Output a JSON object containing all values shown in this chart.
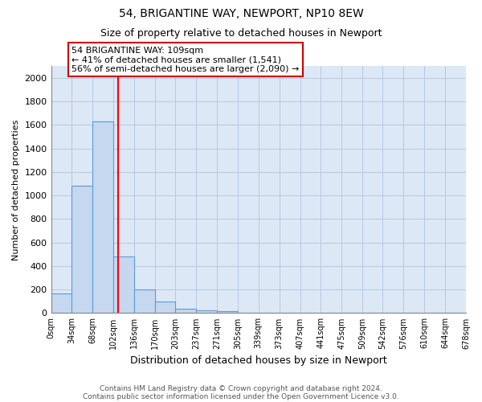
{
  "title1": "54, BRIGANTINE WAY, NEWPORT, NP10 8EW",
  "title2": "Size of property relative to detached houses in Newport",
  "xlabel": "Distribution of detached houses by size in Newport",
  "ylabel": "Number of detached properties",
  "bar_values": [
    170,
    1080,
    1630,
    480,
    200,
    100,
    40,
    25,
    15,
    0,
    0,
    0,
    0,
    0,
    0,
    0,
    0,
    0,
    0,
    0
  ],
  "bin_edges": [
    0,
    34,
    68,
    102,
    136,
    170,
    203,
    237,
    271,
    305,
    339,
    373,
    407,
    441,
    475,
    509,
    542,
    576,
    610,
    644,
    678
  ],
  "xlabels": [
    "0sqm",
    "34sqm",
    "68sqm",
    "102sqm",
    "136sqm",
    "170sqm",
    "203sqm",
    "237sqm",
    "271sqm",
    "305sqm",
    "339sqm",
    "373sqm",
    "407sqm",
    "441sqm",
    "475sqm",
    "509sqm",
    "542sqm",
    "576sqm",
    "610sqm",
    "644sqm",
    "678sqm"
  ],
  "bar_color": "#c5d8f0",
  "bar_edge_color": "#5b9bd5",
  "background_color": "#dce8f5",
  "red_line_x": 109,
  "ylim": [
    0,
    2100
  ],
  "yticks": [
    0,
    200,
    400,
    600,
    800,
    1000,
    1200,
    1400,
    1600,
    1800,
    2000
  ],
  "annotation_line1": "54 BRIGANTINE WAY: 109sqm",
  "annotation_line2": "← 41% of detached houses are smaller (1,541)",
  "annotation_line3": "56% of semi-detached houses are larger (2,090) →",
  "annotation_box_color": "#ffffff",
  "annotation_box_edgecolor": "#cc0000",
  "footer1": "Contains HM Land Registry data © Crown copyright and database right 2024.",
  "footer2": "Contains public sector information licensed under the Open Government Licence v3.0."
}
